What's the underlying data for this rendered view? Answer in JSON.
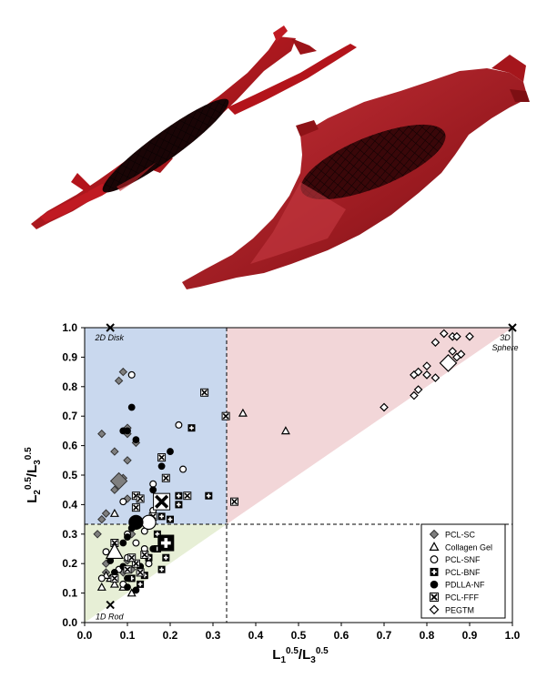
{
  "colors": {
    "blue_region": "#c9d8ee",
    "red_region": "#f2d6d8",
    "green_region": "#e7efd6",
    "cell_red": "#b3141b",
    "cell_dark": "#6b0a0e"
  },
  "cell_images": [
    {
      "name": "spindle-cell-with-rod-ellipsoid"
    },
    {
      "name": "spread-cell-with-disk-ellipsoid"
    }
  ],
  "chart_data": {
    "type": "scatter",
    "xlabel": "L1^0.5/L3^0.5",
    "ylabel": "L2^0.5/L3^0.5",
    "xlim": [
      0,
      1
    ],
    "ylim": [
      0,
      1
    ],
    "x_ticks": [
      "0.0",
      "0.1",
      "0.2",
      "0.3",
      "0.4",
      "0.5",
      "0.6",
      "0.7",
      "0.8",
      "0.9",
      "1.0"
    ],
    "y_ticks": [
      "0.0",
      "0.1",
      "0.2",
      "0.3",
      "0.4",
      "0.5",
      "0.6",
      "0.7",
      "0.8",
      "0.9",
      "1.0"
    ],
    "dashed_lines": {
      "x": 0.333,
      "y": 0.333
    },
    "regions": [
      {
        "name": "2D disk region",
        "color": "blue"
      },
      {
        "name": "3D sphere region",
        "color": "red"
      },
      {
        "name": "1D rod region",
        "color": "green"
      }
    ],
    "reference_points": [
      {
        "label": "2D Disk",
        "x": 0.06,
        "y": 1.0
      },
      {
        "label": "3D Sphere",
        "x": 1.0,
        "y": 1.0
      },
      {
        "label": "1D Rod",
        "x": 0.06,
        "y": 0.06
      }
    ],
    "legend_position": "bottom-right",
    "series": [
      {
        "name": "PCL-SC",
        "marker": "diamond-filled",
        "points": [
          [
            0.04,
            0.64
          ],
          [
            0.07,
            0.58
          ],
          [
            0.09,
            0.49
          ],
          [
            0.1,
            0.66
          ],
          [
            0.1,
            0.64
          ],
          [
            0.12,
            0.61
          ],
          [
            0.1,
            0.55
          ],
          [
            0.1,
            0.42
          ],
          [
            0.05,
            0.37
          ],
          [
            0.04,
            0.35
          ],
          [
            0.03,
            0.3
          ],
          [
            0.05,
            0.2
          ],
          [
            0.05,
            0.17
          ],
          [
            0.1,
            0.21
          ],
          [
            0.09,
            0.17
          ],
          [
            0.11,
            0.18
          ],
          [
            0.08,
            0.82
          ],
          [
            0.09,
            0.85
          ],
          [
            0.07,
            0.45
          ],
          [
            0.11,
            0.3
          ]
        ],
        "large_mean": [
          0.08,
          0.48
        ]
      },
      {
        "name": "Collagen Gel",
        "marker": "triangle-open",
        "points": [
          [
            0.37,
            0.71
          ],
          [
            0.47,
            0.65
          ],
          [
            0.07,
            0.37
          ],
          [
            0.06,
            0.15
          ],
          [
            0.07,
            0.13
          ],
          [
            0.11,
            0.1
          ],
          [
            0.09,
            0.12
          ],
          [
            0.04,
            0.12
          ],
          [
            0.05,
            0.16
          ]
        ],
        "large_mean": [
          0.07,
          0.24
        ]
      },
      {
        "name": "PCL-SNF",
        "marker": "circle-open",
        "points": [
          [
            0.11,
            0.84
          ],
          [
            0.22,
            0.67
          ],
          [
            0.23,
            0.52
          ],
          [
            0.16,
            0.47
          ],
          [
            0.09,
            0.41
          ],
          [
            0.16,
            0.38
          ],
          [
            0.14,
            0.31
          ],
          [
            0.1,
            0.3
          ],
          [
            0.12,
            0.27
          ],
          [
            0.14,
            0.25
          ],
          [
            0.1,
            0.22
          ],
          [
            0.15,
            0.2
          ],
          [
            0.13,
            0.19
          ],
          [
            0.08,
            0.18
          ],
          [
            0.04,
            0.15
          ],
          [
            0.09,
            0.13
          ],
          [
            0.05,
            0.24
          ]
        ],
        "large_mean": [
          0.15,
          0.34
        ]
      },
      {
        "name": "PCL-BNF",
        "marker": "square-plus",
        "points": [
          [
            0.25,
            0.66
          ],
          [
            0.29,
            0.43
          ],
          [
            0.22,
            0.43
          ],
          [
            0.22,
            0.4
          ],
          [
            0.18,
            0.36
          ],
          [
            0.2,
            0.35
          ],
          [
            0.2,
            0.28
          ],
          [
            0.17,
            0.3
          ],
          [
            0.17,
            0.25
          ],
          [
            0.19,
            0.22
          ],
          [
            0.18,
            0.18
          ],
          [
            0.12,
            0.2
          ],
          [
            0.14,
            0.16
          ],
          [
            0.13,
            0.13
          ],
          [
            0.15,
            0.22
          ],
          [
            0.11,
            0.15
          ]
        ],
        "large_mean": [
          0.19,
          0.27
        ]
      },
      {
        "name": "PDLLA-NF",
        "marker": "circle-filled",
        "points": [
          [
            0.11,
            0.73
          ],
          [
            0.1,
            0.65
          ],
          [
            0.12,
            0.62
          ],
          [
            0.09,
            0.65
          ],
          [
            0.2,
            0.58
          ],
          [
            0.18,
            0.53
          ],
          [
            0.16,
            0.45
          ],
          [
            0.11,
            0.32
          ],
          [
            0.1,
            0.29
          ],
          [
            0.09,
            0.27
          ],
          [
            0.07,
            0.24
          ],
          [
            0.06,
            0.21
          ],
          [
            0.09,
            0.19
          ],
          [
            0.07,
            0.17
          ],
          [
            0.1,
            0.15
          ],
          [
            0.1,
            0.12
          ],
          [
            0.12,
            0.11
          ],
          [
            0.13,
            0.19
          ],
          [
            0.16,
            0.25
          ]
        ],
        "large_mean": [
          0.12,
          0.34
        ]
      },
      {
        "name": "PCL-FFF",
        "marker": "square-x",
        "points": [
          [
            0.28,
            0.78
          ],
          [
            0.33,
            0.7
          ],
          [
            0.35,
            0.41
          ],
          [
            0.24,
            0.43
          ],
          [
            0.19,
            0.49
          ],
          [
            0.18,
            0.56
          ],
          [
            0.12,
            0.43
          ],
          [
            0.13,
            0.42
          ],
          [
            0.16,
            0.36
          ],
          [
            0.12,
            0.39
          ],
          [
            0.07,
            0.27
          ],
          [
            0.07,
            0.15
          ],
          [
            0.1,
            0.18
          ],
          [
            0.12,
            0.2
          ],
          [
            0.13,
            0.17
          ],
          [
            0.11,
            0.22
          ],
          [
            0.14,
            0.23
          ]
        ],
        "large_mean": [
          0.18,
          0.41
        ]
      },
      {
        "name": "PEGTM",
        "marker": "diamond-open",
        "points": [
          [
            0.84,
            0.98
          ],
          [
            0.86,
            0.97
          ],
          [
            0.87,
            0.97
          ],
          [
            0.9,
            0.97
          ],
          [
            0.86,
            0.92
          ],
          [
            0.87,
            0.9
          ],
          [
            0.82,
            0.95
          ],
          [
            0.8,
            0.87
          ],
          [
            0.77,
            0.84
          ],
          [
            0.78,
            0.85
          ],
          [
            0.8,
            0.84
          ],
          [
            0.82,
            0.83
          ],
          [
            0.78,
            0.79
          ],
          [
            0.77,
            0.77
          ],
          [
            0.7,
            0.73
          ],
          [
            0.88,
            0.91
          ]
        ],
        "large_mean": [
          0.85,
          0.88
        ]
      }
    ]
  }
}
